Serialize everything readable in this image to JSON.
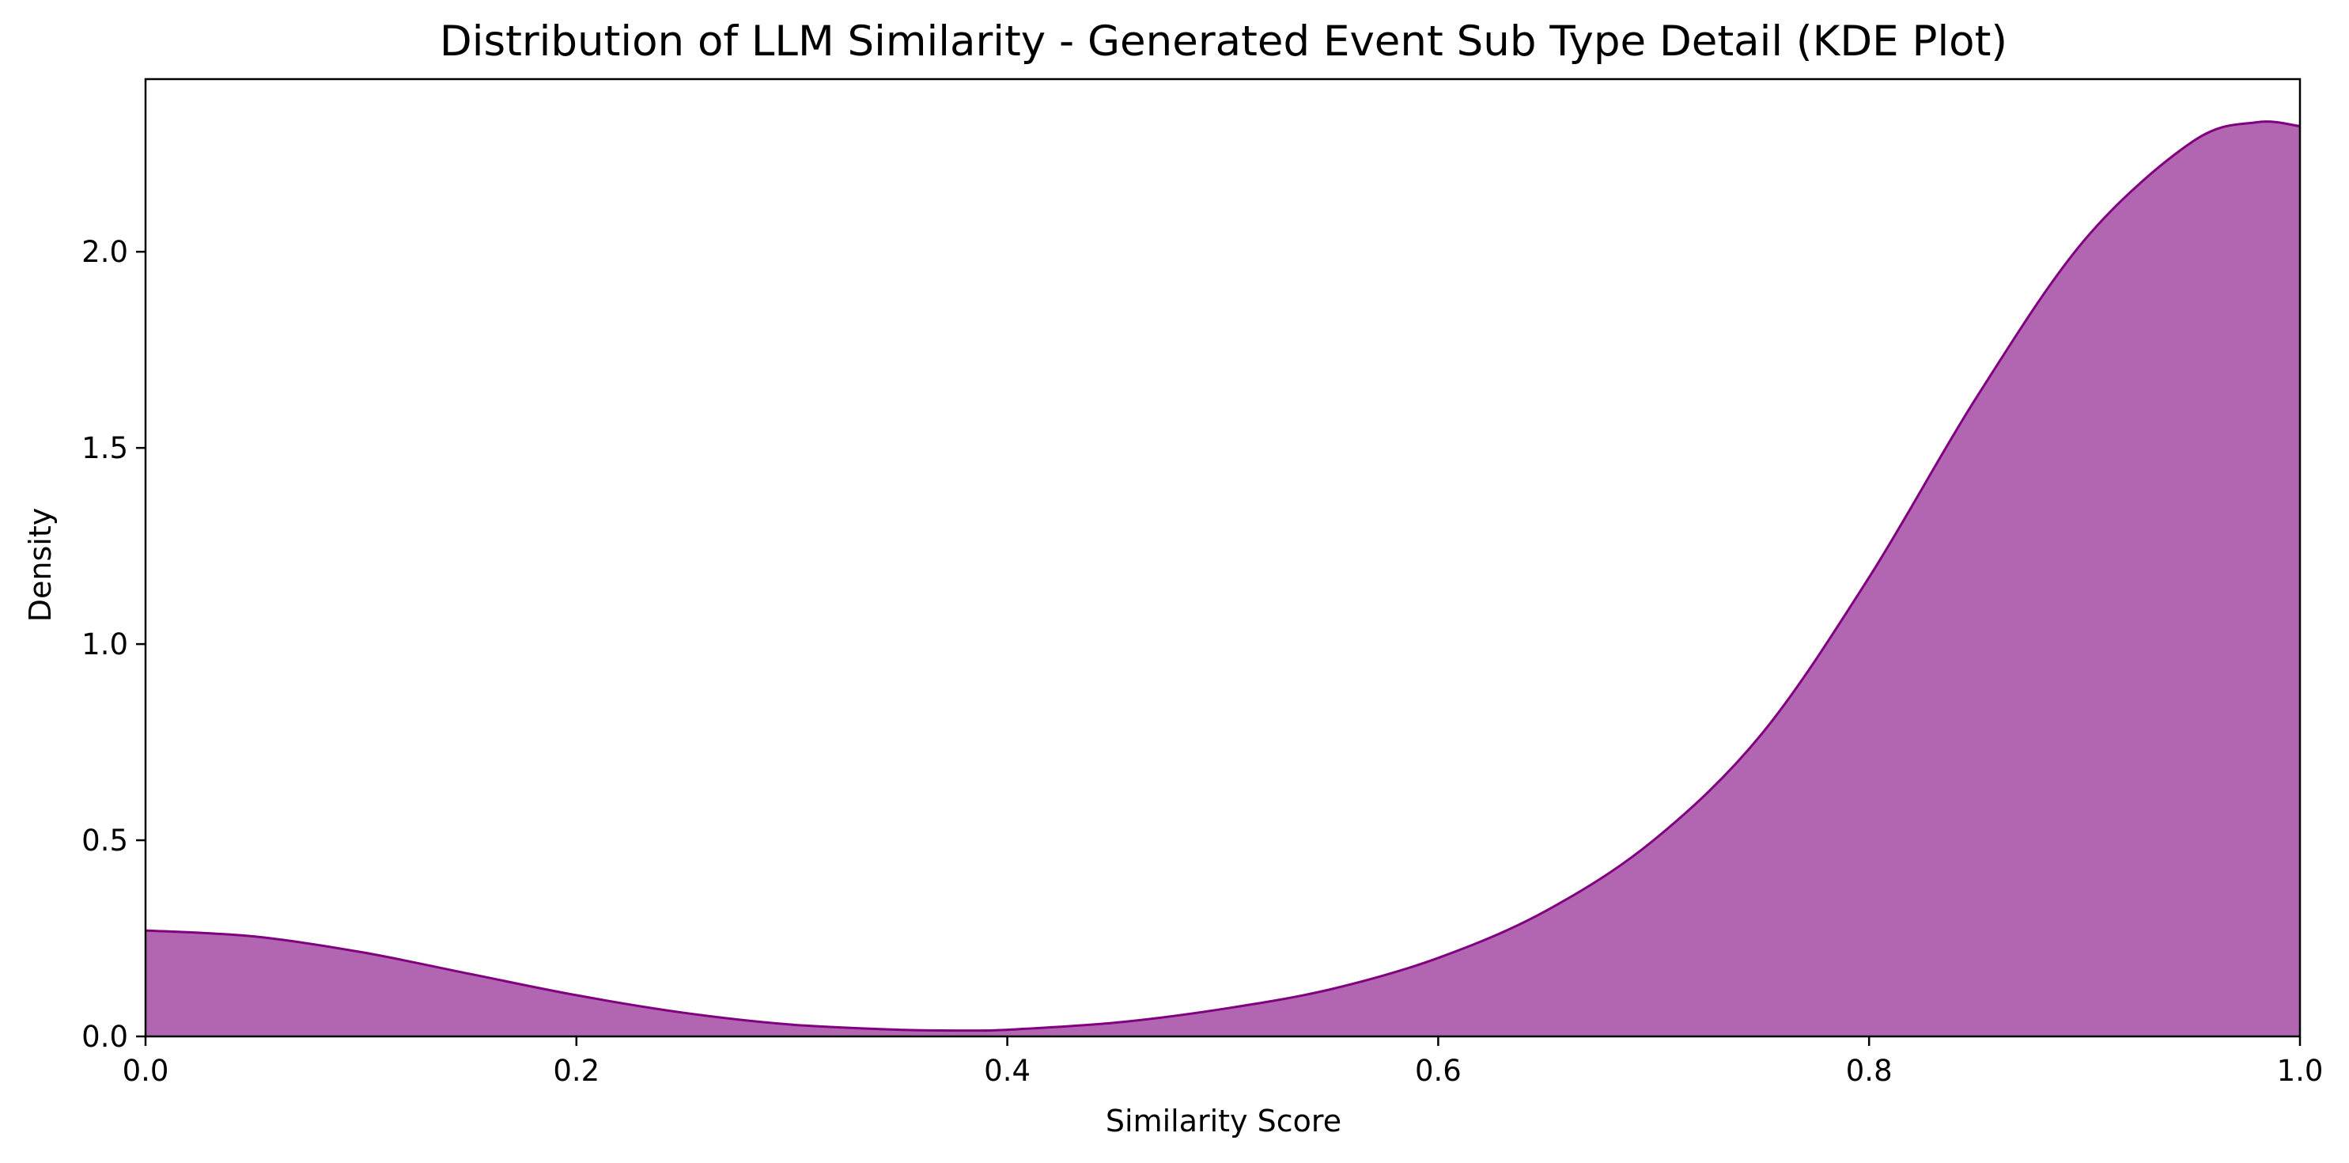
{
  "chart_data": {
    "type": "area",
    "title": "Distribution of LLM Similarity - Generated Event Sub Type Detail (KDE Plot)",
    "xlabel": "Similarity Score",
    "ylabel": "Density",
    "xlim": [
      0.0,
      1.0
    ],
    "ylim": [
      0.0,
      2.44
    ],
    "xticks": [
      0.0,
      0.2,
      0.4,
      0.6,
      0.8,
      1.0
    ],
    "xtick_labels": [
      "0.0",
      "0.2",
      "0.4",
      "0.6",
      "0.8",
      "1.0"
    ],
    "yticks": [
      0.0,
      0.5,
      1.0,
      1.5,
      2.0
    ],
    "ytick_labels": [
      "0.0",
      "0.5",
      "1.0",
      "1.5",
      "2.0"
    ],
    "grid": false,
    "legend": false,
    "colors": {
      "fill": "#b266b2",
      "line": "#800080"
    },
    "series": [
      {
        "x": [
          0.0,
          0.05,
          0.1,
          0.15,
          0.2,
          0.25,
          0.3,
          0.35,
          0.38,
          0.4,
          0.45,
          0.5,
          0.55,
          0.6,
          0.65,
          0.7,
          0.75,
          0.8,
          0.85,
          0.9,
          0.95,
          0.98,
          1.0
        ],
        "y": [
          0.27,
          0.255,
          0.215,
          0.16,
          0.105,
          0.06,
          0.03,
          0.017,
          0.015,
          0.017,
          0.035,
          0.07,
          0.12,
          0.2,
          0.32,
          0.5,
          0.77,
          1.17,
          1.63,
          2.03,
          2.28,
          2.33,
          2.32
        ]
      }
    ]
  }
}
